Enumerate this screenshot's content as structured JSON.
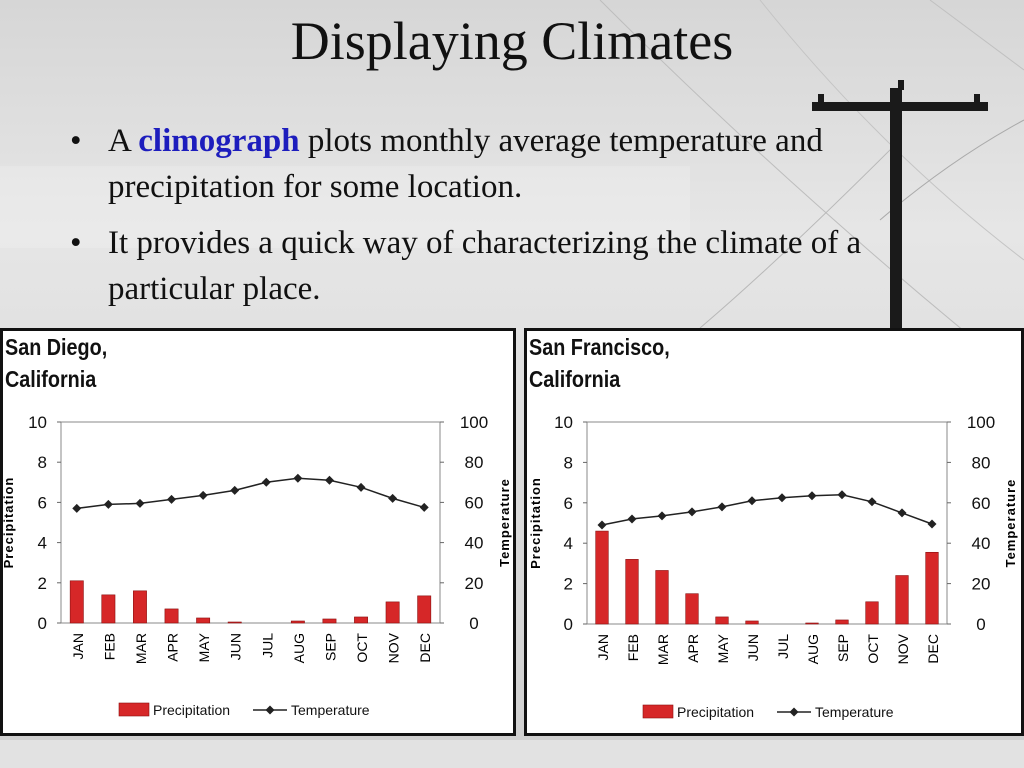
{
  "slide": {
    "title": "Displaying Climates",
    "bullets": [
      {
        "pre": "A ",
        "keyword": "climograph",
        "post": " plots monthly average temperature and precipitation for some location."
      },
      {
        "text": "It provides a quick way of characterizing the climate of a particular place."
      }
    ],
    "bullet_glyph": "•"
  },
  "chart_data": [
    {
      "type": "bar",
      "title_line1": "San Diego,",
      "title_line2": "California",
      "categories": [
        "JAN",
        "FEB",
        "MAR",
        "APR",
        "MAY",
        "JUN",
        "JUL",
        "AUG",
        "SEP",
        "OCT",
        "NOV",
        "DEC"
      ],
      "series": [
        {
          "name": "Precipitation",
          "type": "bar",
          "axis": "left",
          "color": "#d62728",
          "values": [
            2.1,
            1.4,
            1.6,
            0.7,
            0.25,
            0.05,
            0.0,
            0.1,
            0.2,
            0.3,
            1.05,
            1.35
          ]
        },
        {
          "name": "Temperature",
          "type": "line",
          "axis": "right",
          "color": "#222222",
          "values": [
            57,
            59,
            59.5,
            61.5,
            63.5,
            66,
            70,
            72,
            71,
            67.5,
            62,
            57.5
          ]
        }
      ],
      "ylabel": "Precipitation",
      "y2label": "Temperature",
      "ylim": [
        0,
        10
      ],
      "y2lim": [
        0,
        100
      ],
      "yticks": [
        "0",
        "2",
        "4",
        "6",
        "8",
        "10"
      ],
      "y2ticks": [
        "0",
        "20",
        "40",
        "60",
        "80",
        "100"
      ],
      "legend": "bottom"
    },
    {
      "type": "bar",
      "title_line1": "San Francisco,",
      "title_line2": "California",
      "categories": [
        "JAN",
        "FEB",
        "MAR",
        "APR",
        "MAY",
        "JUN",
        "JUL",
        "AUG",
        "SEP",
        "OCT",
        "NOV",
        "DEC"
      ],
      "series": [
        {
          "name": "Precipitation",
          "type": "bar",
          "axis": "left",
          "color": "#d62728",
          "values": [
            4.6,
            3.2,
            2.65,
            1.5,
            0.35,
            0.15,
            0.0,
            0.05,
            0.2,
            1.1,
            2.4,
            3.55
          ]
        },
        {
          "name": "Temperature",
          "type": "line",
          "axis": "right",
          "color": "#222222",
          "values": [
            49,
            52,
            53.5,
            55.5,
            58,
            61,
            62.5,
            63.5,
            64,
            60.5,
            55,
            49.5
          ]
        }
      ],
      "ylabel": "Precipitation",
      "y2label": "Temperature",
      "ylim": [
        0,
        10
      ],
      "y2lim": [
        0,
        100
      ],
      "yticks": [
        "0",
        "2",
        "4",
        "6",
        "8",
        "10"
      ],
      "y2ticks": [
        "0",
        "20",
        "40",
        "60",
        "80",
        "100"
      ],
      "legend": "bottom"
    }
  ]
}
